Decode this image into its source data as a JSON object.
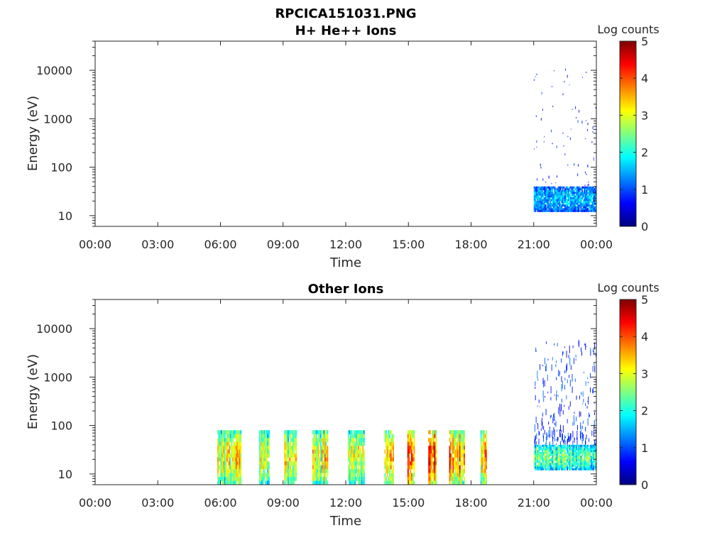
{
  "figure_title": "RPCICA151031.PNG",
  "colorscale": [
    "#00007f",
    "#0000ff",
    "#0080ff",
    "#00ffff",
    "#80ff80",
    "#ffff00",
    "#ff8000",
    "#ff0000",
    "#7f0000"
  ],
  "chart_data": [
    {
      "type": "heatmap",
      "title": "H+ He++ Ions",
      "xlabel": "Time",
      "ylabel": "Energy (eV)",
      "x_ticks": [
        "00:00",
        "03:00",
        "06:00",
        "09:00",
        "12:00",
        "15:00",
        "18:00",
        "21:00",
        "00:00"
      ],
      "xlim_hours": [
        0,
        24
      ],
      "y_scale": "log",
      "ylim": [
        6,
        40000
      ],
      "y_ticks": [
        "10",
        "100",
        "1000",
        "10000"
      ],
      "y_tick_values": [
        10,
        100,
        1000,
        10000
      ],
      "colorbar_label": "Log counts",
      "colorbar_ticks": [
        "0",
        "1",
        "2",
        "3",
        "4",
        "5"
      ],
      "clim": [
        0,
        5
      ],
      "bands": [
        {
          "t_start": 21.0,
          "t_end": 24.0,
          "e_low": 12,
          "e_high": 40,
          "mean_level": 1.3
        }
      ],
      "sparse_region": {
        "t_start": 21.0,
        "t_end": 24.0,
        "e_low": 40,
        "e_high": 12000,
        "mean_level": 0.8
      }
    },
    {
      "type": "heatmap",
      "title": "Other Ions",
      "xlabel": "Time",
      "ylabel": "Energy (eV)",
      "x_ticks": [
        "00:00",
        "03:00",
        "06:00",
        "09:00",
        "12:00",
        "15:00",
        "18:00",
        "21:00",
        "00:00"
      ],
      "xlim_hours": [
        0,
        24
      ],
      "y_scale": "log",
      "ylim": [
        6,
        40000
      ],
      "y_ticks": [
        "10",
        "100",
        "1000",
        "10000"
      ],
      "y_tick_values": [
        10,
        100,
        1000,
        10000
      ],
      "colorbar_label": "Log counts",
      "colorbar_ticks": [
        "0",
        "1",
        "2",
        "3",
        "4",
        "5"
      ],
      "clim": [
        0,
        5
      ],
      "bands": [
        {
          "t_start": 5.85,
          "t_end": 7.0,
          "e_low": 6,
          "e_high": 80,
          "mean_level": 2.6
        },
        {
          "t_start": 7.85,
          "t_end": 8.35,
          "e_low": 6,
          "e_high": 80,
          "mean_level": 2.4
        },
        {
          "t_start": 9.05,
          "t_end": 9.65,
          "e_low": 6,
          "e_high": 80,
          "mean_level": 2.5
        },
        {
          "t_start": 10.4,
          "t_end": 11.15,
          "e_low": 6,
          "e_high": 80,
          "mean_level": 2.6
        },
        {
          "t_start": 12.1,
          "t_end": 12.9,
          "e_low": 6,
          "e_high": 80,
          "mean_level": 2.5
        },
        {
          "t_start": 13.85,
          "t_end": 14.3,
          "e_low": 6,
          "e_high": 80,
          "mean_level": 2.9
        },
        {
          "t_start": 14.95,
          "t_end": 15.3,
          "e_low": 6,
          "e_high": 80,
          "mean_level": 3.1
        },
        {
          "t_start": 15.95,
          "t_end": 16.35,
          "e_low": 6,
          "e_high": 80,
          "mean_level": 3.5
        },
        {
          "t_start": 16.95,
          "t_end": 17.7,
          "e_low": 6,
          "e_high": 80,
          "mean_level": 3.2
        },
        {
          "t_start": 18.45,
          "t_end": 18.75,
          "e_low": 6,
          "e_high": 80,
          "mean_level": 2.9
        },
        {
          "t_start": 21.0,
          "t_end": 24.0,
          "e_low": 12,
          "e_high": 40,
          "mean_level": 2.0
        }
      ],
      "sparse_region": {
        "t_start": 21.0,
        "t_end": 24.0,
        "e_low": 40,
        "e_high": 5000,
        "mean_level": 1.0
      }
    }
  ]
}
